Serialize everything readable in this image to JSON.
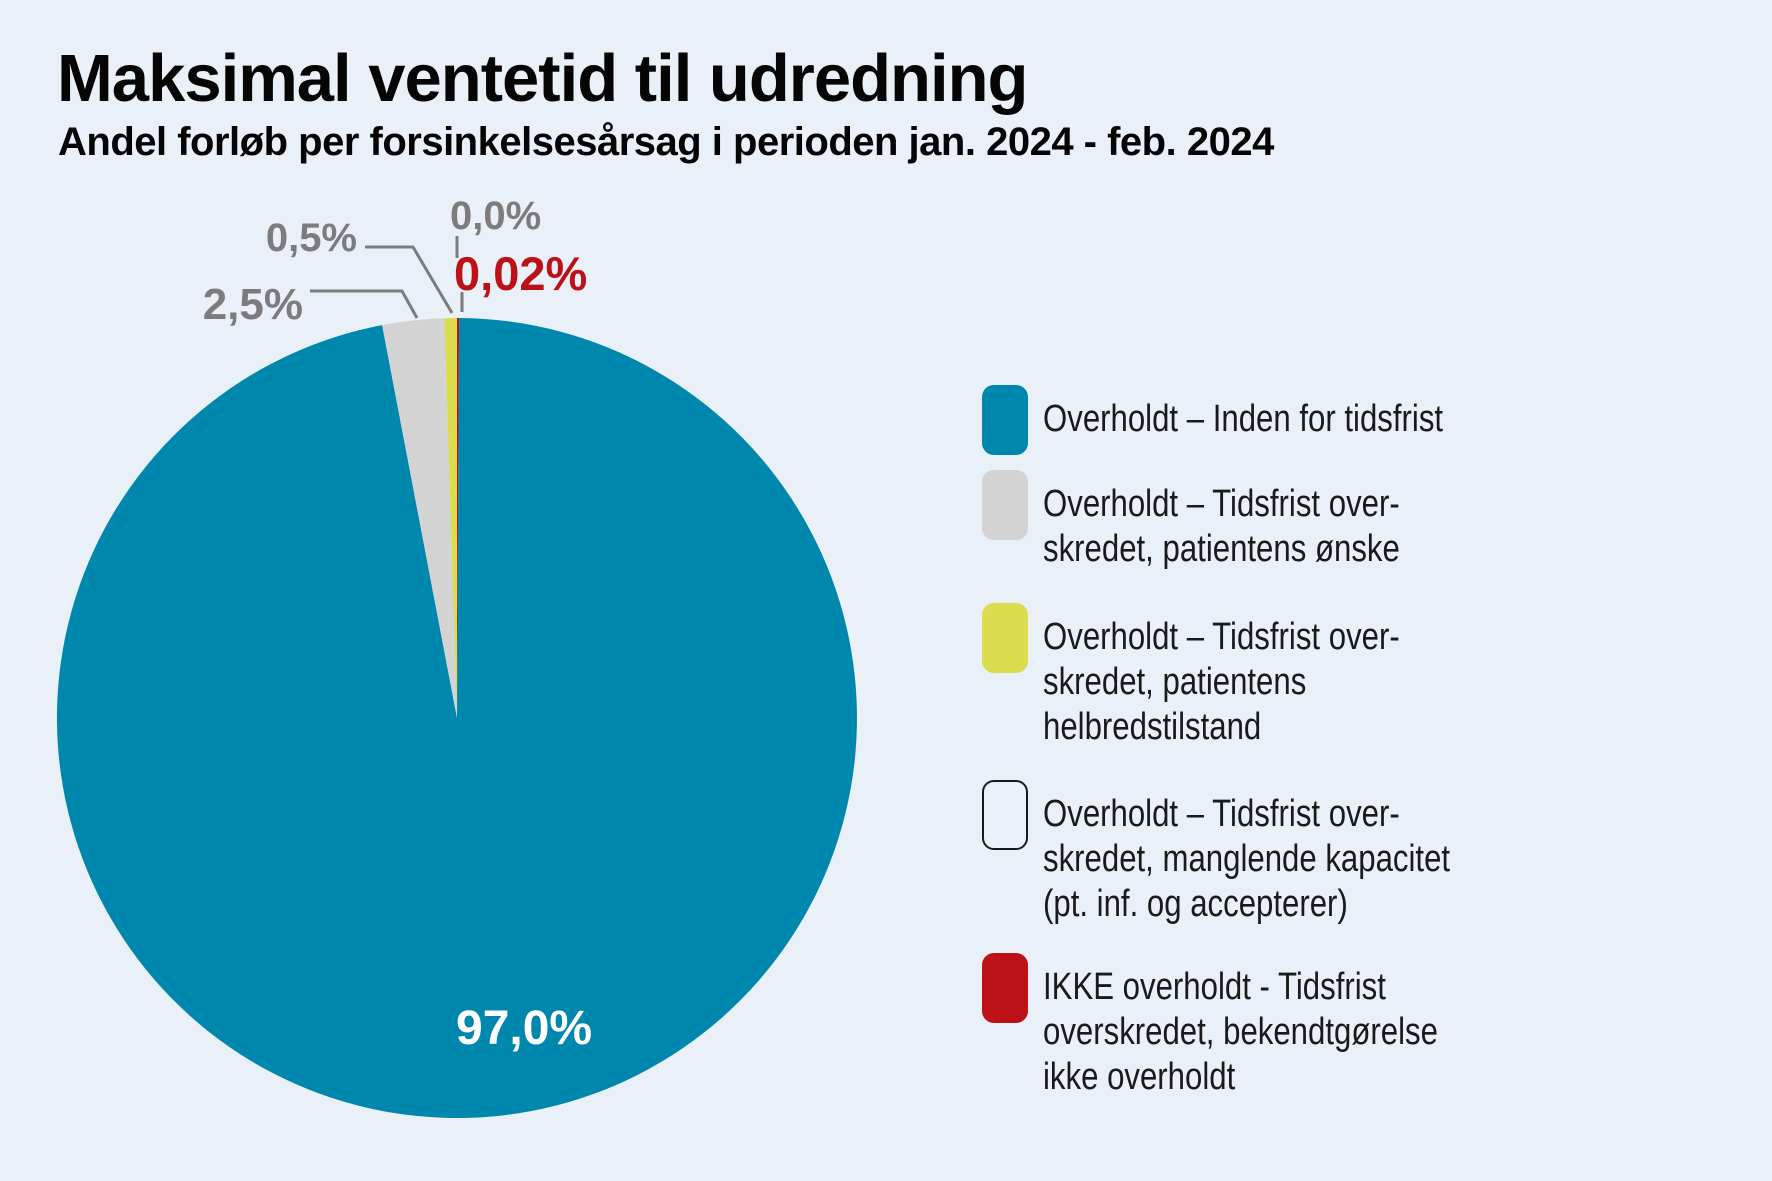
{
  "header": {
    "title": "Maksimal ventetid til udredning",
    "subtitle": "Andel forløb per forsinkelsesårsag i perioden jan. 2024 - feb. 2024"
  },
  "chart_data": {
    "type": "pie",
    "title": "Maksimal ventetid til udredning",
    "subtitle": "Andel forløb per forsinkelsesårsag i perioden jan. 2024 - feb. 2024",
    "unit": "%",
    "direction": "clockwise",
    "start": "12-oclock",
    "legend_position": "right",
    "slices": [
      {
        "label": "Overholdt – Inden for tidsfrist",
        "value_pct": 97.0,
        "value_display": "97,0%",
        "color": "#0087ad"
      },
      {
        "label": "Overholdt – Tidsfrist overskredet, patientens ønske",
        "value_pct": 2.5,
        "value_display": "2,5%",
        "color": "#d3d3d3"
      },
      {
        "label": "Overholdt – Tidsfrist overskredet, patientens helbredstilstand",
        "value_pct": 0.5,
        "value_display": "0,5%",
        "color": "#dcdd4c"
      },
      {
        "label": "Overholdt – Tidsfrist overskredet, manglende kapacitet (pt. inf. og accepterer)",
        "value_pct": 0.0,
        "value_display": "0,0%",
        "color": "#ebf1f8"
      },
      {
        "label": "IKKE overholdt - Tidsfrist overskredet, bekendtgørelse ikke overholdt",
        "value_pct": 0.02,
        "value_display": "0,02%",
        "color": "#bd1118"
      }
    ],
    "render_order": [
      4,
      0,
      1,
      2,
      3
    ],
    "inside_label": {
      "text": "97,0%",
      "color": "#ffffff"
    },
    "callouts": [
      {
        "text": "2,5%",
        "color": "#7c7c7c"
      },
      {
        "text": "0,5%",
        "color": "#7c7c7c"
      },
      {
        "text": "0,0%",
        "color": "#7c7c7c"
      },
      {
        "text": "0,02%",
        "color": "#bd1118"
      }
    ]
  },
  "legend": {
    "items": [
      {
        "label": "Overholdt – Inden for tidsfrist",
        "swatch_color": "#0087ad",
        "outlined": false
      },
      {
        "label": "Overholdt – Tidsfrist over-\nskredet, patientens ønske",
        "swatch_color": "#d3d3d3",
        "outlined": false
      },
      {
        "label": "Overholdt – Tidsfrist over-\nskredet, patientens\nhelbredstilstand",
        "swatch_color": "#dcdd4c",
        "outlined": false
      },
      {
        "label": "Overholdt – Tidsfrist over-\nskredet, manglende kapacitet\n(pt. inf. og accepterer)",
        "swatch_color": "#ebf1f8",
        "outlined": true
      },
      {
        "label": "IKKE overholdt - Tidsfrist\noverskredet, bekendtgørelse\nikke overholdt",
        "swatch_color": "#bd1118",
        "outlined": false
      }
    ]
  }
}
